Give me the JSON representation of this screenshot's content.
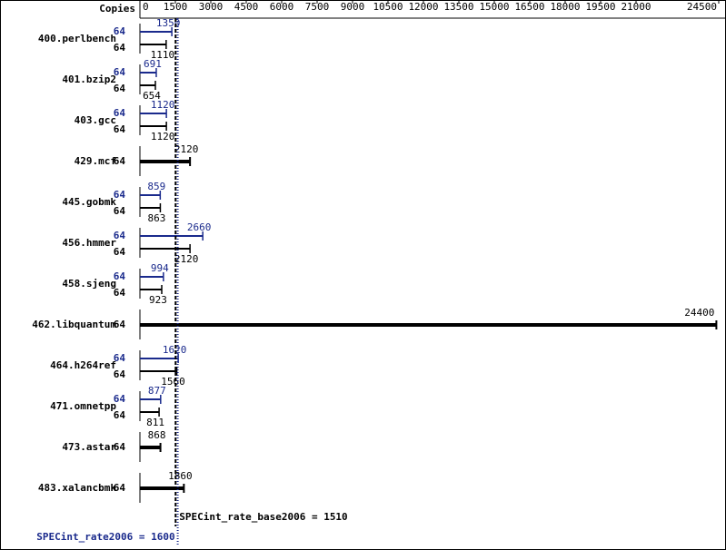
{
  "chart_data": {
    "type": "bar",
    "orientation": "horizontal",
    "copies_label": "Copies",
    "categories": [
      "400.perlbench",
      "401.bzip2",
      "403.gcc",
      "429.mcf",
      "445.gobmk",
      "456.hmmer",
      "458.sjeng",
      "462.libquantum",
      "464.h264ref",
      "471.omnetpp",
      "473.astar",
      "483.xalancbmk"
    ],
    "series": [
      {
        "color": "#1a2a8c",
        "copies": [
          64,
          64,
          64,
          null,
          64,
          64,
          64,
          null,
          64,
          64,
          null,
          null
        ],
        "values": [
          1350,
          691,
          1120,
          null,
          859,
          2660,
          994,
          null,
          1620,
          877,
          null,
          null
        ]
      },
      {
        "color": "#000000",
        "copies": [
          64,
          64,
          64,
          64,
          64,
          64,
          64,
          64,
          64,
          64,
          64,
          64
        ],
        "values": [
          1110,
          654,
          1120,
          2120,
          863,
          2120,
          923,
          24400,
          1560,
          811,
          868,
          1860
        ]
      }
    ],
    "xlim": [
      0,
      24500
    ],
    "xticks": [
      0,
      1500,
      3000,
      4500,
      6000,
      7500,
      9000,
      10500,
      12000,
      13500,
      15000,
      16500,
      18000,
      19500,
      21000,
      24500
    ],
    "reference_lines": [
      {
        "label": "SPECint_rate_base2006 = 1510",
        "value": 1510,
        "color": "#000000"
      },
      {
        "label": "SPECint_rate2006 = 1600",
        "value": 1600,
        "color": "#1a2a8c"
      }
    ]
  }
}
